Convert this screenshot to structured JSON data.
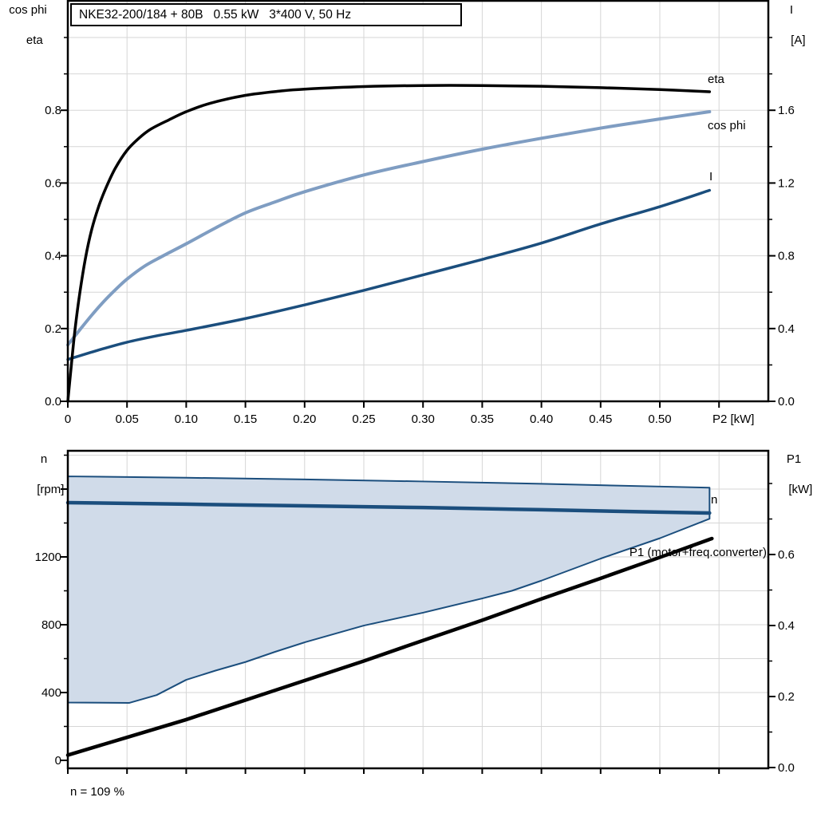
{
  "title_box": {
    "text": "NKE32-200/184 + 80B   0.55 kW   3*400 V, 50 Hz"
  },
  "footer": {
    "text": "n = 109 %"
  },
  "colors": {
    "dark_blue": "#1b4e7d",
    "light_blue": "#7f9dc2",
    "envelope_fill": "#d0dbe9",
    "grid": "#d6d6d6",
    "frame": "#000000",
    "background": "#ffffff"
  },
  "chart_data": [
    {
      "id": "motor-efficiency-chart",
      "type": "line",
      "title": "NKE32-200/184 + 80B   0.55 kW   3*400 V, 50 Hz",
      "x": {
        "label": "P2 [kW]",
        "min": 0,
        "max": 0.5925,
        "ticks": [
          0,
          0.05,
          0.1,
          0.15,
          0.2,
          0.25,
          0.3,
          0.35,
          0.4,
          0.45,
          0.5
        ],
        "tick_labels": [
          "0",
          "0.05",
          "0.10",
          "0.15",
          "0.20",
          "0.25",
          "0.30",
          "0.35",
          "0.40",
          "0.45",
          "0.50"
        ],
        "extra_tick": 0.55,
        "grid_step": 0.05
      },
      "y_left": {
        "label_lines": [
          "cos phi",
          "eta"
        ],
        "min": 0,
        "max": 1.1,
        "ticks": [
          0.0,
          0.2,
          0.4,
          0.6,
          0.8
        ],
        "tick_labels": [
          "0.0",
          "0.2",
          "0.4",
          "0.6",
          "0.8"
        ],
        "minor_step": 0.1,
        "grid_step": 0.1
      },
      "y_right": {
        "label_lines": [
          "I",
          "[A]"
        ],
        "min": 0,
        "max": 2.2,
        "ticks": [
          0.0,
          0.4,
          0.8,
          1.2,
          1.6
        ],
        "tick_labels": [
          "0.0",
          "0.4",
          "0.8",
          "1.2",
          "1.6"
        ],
        "minor_step": 0.2
      },
      "series": [
        {
          "name": "I",
          "axis": "right",
          "color": "#1b4e7d",
          "width": 3.5,
          "smooth": true,
          "points": [
            [
              0,
              0.23
            ],
            [
              0.025,
              0.28
            ],
            [
              0.05,
              0.325
            ],
            [
              0.075,
              0.36
            ],
            [
              0.1,
              0.39
            ],
            [
              0.15,
              0.455
            ],
            [
              0.2,
              0.53
            ],
            [
              0.25,
              0.61
            ],
            [
              0.3,
              0.695
            ],
            [
              0.35,
              0.78
            ],
            [
              0.4,
              0.87
            ],
            [
              0.45,
              0.975
            ],
            [
              0.5,
              1.07
            ],
            [
              0.542,
              1.16
            ]
          ]
        },
        {
          "name": "cos phi",
          "axis": "left",
          "color": "#7f9dc2",
          "width": 4,
          "smooth": true,
          "points": [
            [
              0,
              0.155
            ],
            [
              0.01,
              0.196
            ],
            [
              0.02,
              0.236
            ],
            [
              0.03,
              0.273
            ],
            [
              0.04,
              0.306
            ],
            [
              0.05,
              0.336
            ],
            [
              0.065,
              0.372
            ],
            [
              0.08,
              0.399
            ],
            [
              0.1,
              0.433
            ],
            [
              0.125,
              0.477
            ],
            [
              0.15,
              0.518
            ],
            [
              0.175,
              0.548
            ],
            [
              0.2,
              0.576
            ],
            [
              0.25,
              0.622
            ],
            [
              0.3,
              0.659
            ],
            [
              0.35,
              0.693
            ],
            [
              0.4,
              0.723
            ],
            [
              0.45,
              0.751
            ],
            [
              0.5,
              0.776
            ],
            [
              0.542,
              0.796
            ]
          ]
        },
        {
          "name": "eta",
          "axis": "left",
          "color": "#000000",
          "width": 3.5,
          "smooth": true,
          "points": [
            [
              0,
              0
            ],
            [
              0.003,
              0.1
            ],
            [
              0.006,
              0.195
            ],
            [
              0.01,
              0.295
            ],
            [
              0.015,
              0.395
            ],
            [
              0.02,
              0.47
            ],
            [
              0.026,
              0.535
            ],
            [
              0.032,
              0.585
            ],
            [
              0.04,
              0.64
            ],
            [
              0.05,
              0.69
            ],
            [
              0.06,
              0.723
            ],
            [
              0.07,
              0.748
            ],
            [
              0.085,
              0.773
            ],
            [
              0.1,
              0.796
            ],
            [
              0.12,
              0.819
            ],
            [
              0.15,
              0.841
            ],
            [
              0.18,
              0.853
            ],
            [
              0.2,
              0.858
            ],
            [
              0.25,
              0.865
            ],
            [
              0.3,
              0.868
            ],
            [
              0.35,
              0.868
            ],
            [
              0.4,
              0.866
            ],
            [
              0.45,
              0.862
            ],
            [
              0.5,
              0.857
            ],
            [
              0.542,
              0.851
            ]
          ]
        }
      ]
    },
    {
      "id": "speed-power-chart",
      "type": "line",
      "x": {
        "label": "",
        "min": 0,
        "max": 0.5925,
        "ticks": [
          0,
          0.05,
          0.1,
          0.15,
          0.2,
          0.25,
          0.3,
          0.35,
          0.4,
          0.45,
          0.5,
          0.55
        ],
        "tick_labels": [],
        "grid_step": 0.05
      },
      "y_left": {
        "label_lines": [
          "n",
          "[rpm]"
        ],
        "min": 0,
        "max": 1825,
        "ticks": [
          0,
          400,
          800,
          1200
        ],
        "tick_labels": [
          "0",
          "400",
          "800",
          "1200"
        ],
        "unlabeled_ticks": [
          1600
        ],
        "minor_step": 200,
        "grid_step": 200
      },
      "y_right": {
        "label_lines": [
          "P1",
          "[kW]"
        ],
        "min": 0,
        "max": 0.89,
        "ticks": [
          0.0,
          0.2,
          0.4,
          0.6
        ],
        "tick_labels": [
          "0.0",
          "0.2",
          "0.4",
          "0.6"
        ],
        "minor_ticks": [
          0.1,
          0.3,
          0.5,
          0.7,
          0.8
        ]
      },
      "envelope": {
        "name": "speed-operating-range",
        "upper_rpm": [
          [
            0,
            1675
          ],
          [
            0.1,
            1667
          ],
          [
            0.2,
            1657
          ],
          [
            0.3,
            1645
          ],
          [
            0.4,
            1631
          ],
          [
            0.5,
            1615
          ],
          [
            0.542,
            1608
          ]
        ],
        "lower_rpm": [
          [
            0,
            341
          ],
          [
            0.052,
            339
          ],
          [
            0.075,
            385
          ],
          [
            0.1,
            475
          ],
          [
            0.125,
            530
          ],
          [
            0.15,
            580
          ],
          [
            0.175,
            640
          ],
          [
            0.2,
            696
          ],
          [
            0.25,
            795
          ],
          [
            0.3,
            871
          ],
          [
            0.35,
            955
          ],
          [
            0.375,
            1000
          ],
          [
            0.4,
            1060
          ],
          [
            0.45,
            1190
          ],
          [
            0.5,
            1310
          ],
          [
            0.542,
            1425
          ]
        ]
      },
      "series": [
        {
          "name": "n",
          "axis": "left",
          "color": "#1b4e7d",
          "width": 4.5,
          "smooth": false,
          "points": [
            [
              0,
              1520
            ],
            [
              0.1,
              1511
            ],
            [
              0.2,
              1501
            ],
            [
              0.3,
              1491
            ],
            [
              0.4,
              1478
            ],
            [
              0.5,
              1464
            ],
            [
              0.542,
              1459
            ]
          ]
        },
        {
          "name": "P1 (motor+freq.converter)",
          "axis": "right",
          "color": "#000000",
          "width": 4.5,
          "smooth": false,
          "points": [
            [
              0,
              0.035
            ],
            [
              0.05,
              0.085
            ],
            [
              0.1,
              0.135
            ],
            [
              0.15,
              0.19
            ],
            [
              0.2,
              0.245
            ],
            [
              0.25,
              0.3
            ],
            [
              0.3,
              0.358
            ],
            [
              0.35,
              0.415
            ],
            [
              0.4,
              0.475
            ],
            [
              0.45,
              0.533
            ],
            [
              0.5,
              0.592
            ],
            [
              0.544,
              0.645
            ]
          ]
        }
      ]
    }
  ]
}
